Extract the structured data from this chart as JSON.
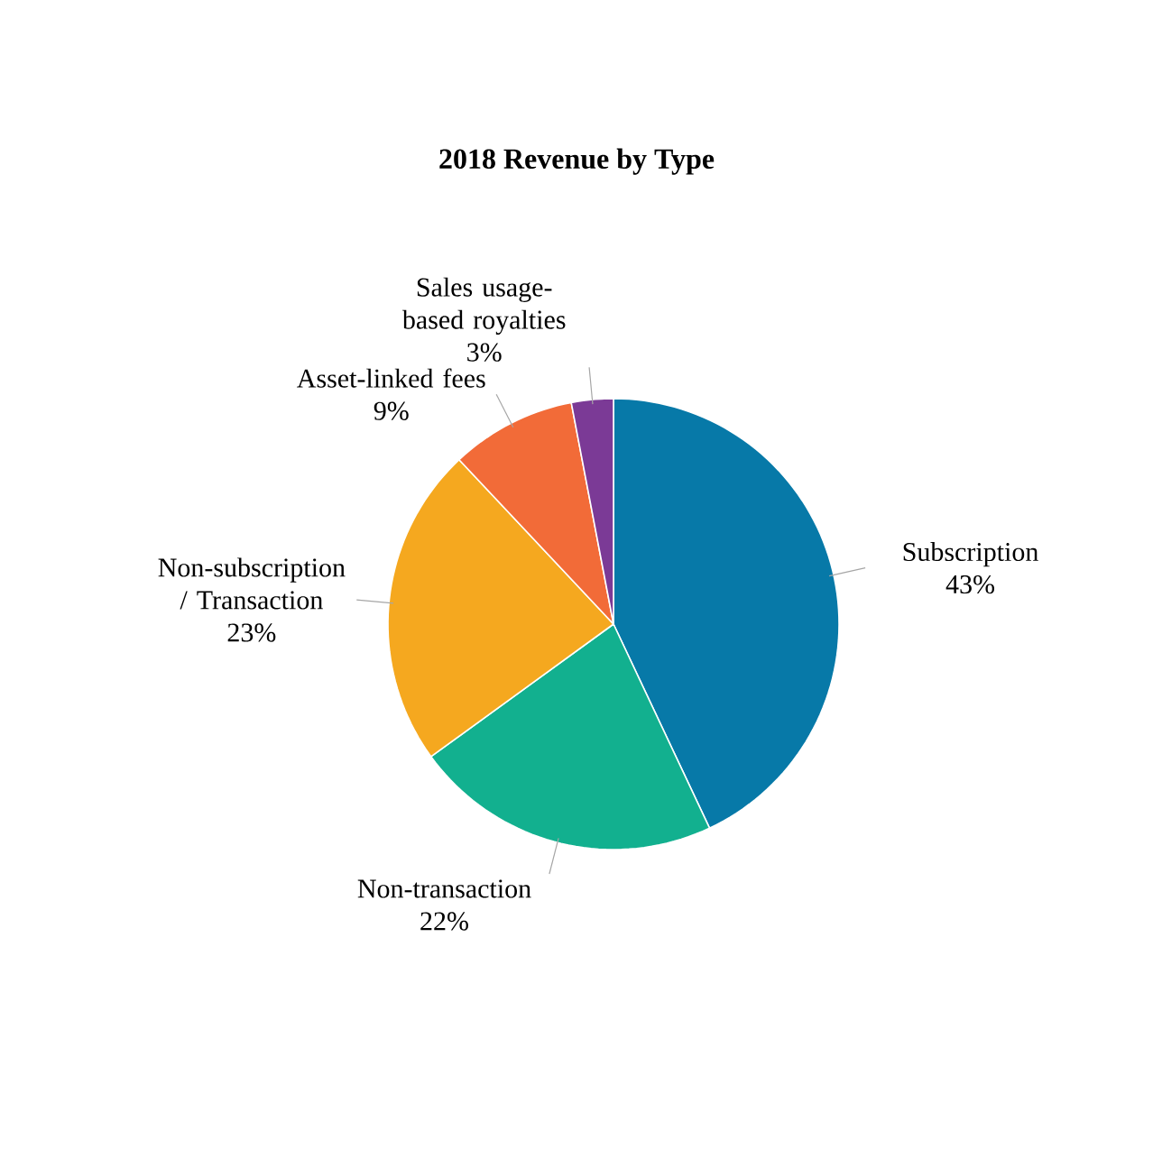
{
  "chart_data": {
    "type": "pie",
    "title": "2018 Revenue by Type",
    "categories": [
      "Subscription",
      "Non-transaction",
      "Non-subscription / Transaction",
      "Asset-linked fees",
      "Sales usage-based royalties"
    ],
    "values": [
      43,
      22,
      23,
      9,
      3
    ],
    "value_labels": [
      "43%",
      "22%",
      "23%",
      "9%",
      "3%"
    ],
    "colors": [
      "#0779a8",
      "#12b08f",
      "#f5a81f",
      "#f26b38",
      "#7b3a96"
    ]
  }
}
